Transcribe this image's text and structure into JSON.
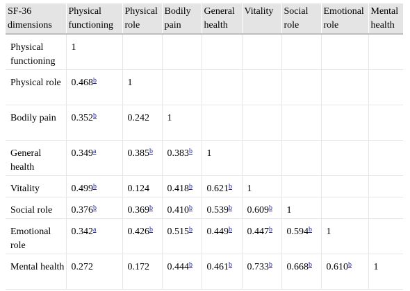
{
  "table": {
    "headers": [
      "SF-36 dimensions",
      "Physical functioning",
      "Physical role",
      "Bodily pain",
      "General health",
      "Vitality",
      "Social role",
      "Emotional role",
      "Mental health"
    ],
    "rows": [
      {
        "label": "Physical functioning",
        "cells": [
          {
            "v": "1",
            "s": ""
          }
        ]
      },
      {
        "label": "Physical role",
        "cells": [
          {
            "v": "0.468",
            "s": "b"
          },
          {
            "v": "1",
            "s": ""
          }
        ]
      },
      {
        "label": "Bodily pain",
        "cells": [
          {
            "v": "0.352",
            "s": "b"
          },
          {
            "v": "0.242",
            "s": ""
          },
          {
            "v": "1",
            "s": ""
          }
        ]
      },
      {
        "label": "General health",
        "cells": [
          {
            "v": "0.349",
            "s": "a"
          },
          {
            "v": "0.385",
            "s": "b"
          },
          {
            "v": "0.383",
            "s": "b"
          },
          {
            "v": "1",
            "s": ""
          }
        ]
      },
      {
        "label": "Vitality",
        "cells": [
          {
            "v": "0.499",
            "s": "b"
          },
          {
            "v": "0.124",
            "s": ""
          },
          {
            "v": "0.418",
            "s": "b"
          },
          {
            "v": "0.621",
            "s": "b"
          },
          {
            "v": "1",
            "s": ""
          }
        ]
      },
      {
        "label": "Social role",
        "cells": [
          {
            "v": "0.376",
            "s": "b"
          },
          {
            "v": "0.369",
            "s": "b"
          },
          {
            "v": "0.410",
            "s": "b"
          },
          {
            "v": "0.539",
            "s": "b"
          },
          {
            "v": "0.609",
            "s": "b"
          },
          {
            "v": "1",
            "s": ""
          }
        ]
      },
      {
        "label": "Emotional role",
        "cells": [
          {
            "v": "0.342",
            "s": "a"
          },
          {
            "v": "0.426",
            "s": "b"
          },
          {
            "v": "0.515",
            "s": "b"
          },
          {
            "v": "0.449",
            "s": "b"
          },
          {
            "v": "0.447",
            "s": "b"
          },
          {
            "v": "0.594",
            "s": "b"
          },
          {
            "v": "1",
            "s": ""
          }
        ]
      },
      {
        "label": "Mental health",
        "cells": [
          {
            "v": "0.272",
            "s": ""
          },
          {
            "v": "0.172",
            "s": ""
          },
          {
            "v": "0.444",
            "s": "b"
          },
          {
            "v": "0.461",
            "s": "b"
          },
          {
            "v": "0.733",
            "s": "b"
          },
          {
            "v": "0.668",
            "s": "b"
          },
          {
            "v": "0.610",
            "s": "b"
          },
          {
            "v": "1",
            "s": ""
          }
        ]
      }
    ]
  },
  "colors": {
    "header_bg": "#e4e4e4",
    "footnote_link": "#2222aa",
    "grid_line": "#e6e6e6"
  }
}
